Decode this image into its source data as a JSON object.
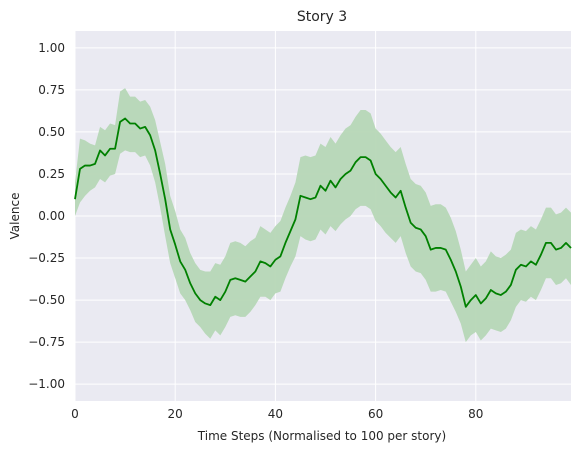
{
  "chart_data": {
    "type": "line",
    "title": "Story 3",
    "xlabel": "Time Steps (Normalised to 100 per story)",
    "ylabel": "Valence",
    "xlim": [
      0,
      99
    ],
    "ylim": [
      -1.1,
      1.1
    ],
    "xticks": [
      0,
      20,
      40,
      60,
      80
    ],
    "yticks": [
      -1.0,
      -0.75,
      -0.5,
      -0.25,
      0.0,
      0.25,
      0.5,
      0.75,
      1.0
    ],
    "ytick_labels": [
      "−1.00",
      "−0.75",
      "−0.50",
      "−0.25",
      "0.00",
      "0.25",
      "0.50",
      "0.75",
      "1.00"
    ],
    "grid": true,
    "style": "seaborn-darkgrid",
    "colors": {
      "line": "#008000",
      "band": "#b6d7b6",
      "background": "#eaeaf2",
      "grid": "#ffffff"
    },
    "series": [
      {
        "x": [
          0,
          1,
          2,
          3,
          4,
          5,
          6,
          7,
          8,
          9,
          10,
          11,
          12,
          13,
          14,
          15,
          16,
          17,
          18,
          19,
          20,
          21,
          22,
          23,
          24,
          25,
          26,
          27,
          28,
          29,
          30,
          31,
          32,
          33,
          34,
          35,
          36,
          37,
          38,
          39,
          40,
          41,
          42,
          43,
          44,
          45,
          46,
          47,
          48,
          49,
          50,
          51,
          52,
          53,
          54,
          55,
          56,
          57,
          58,
          59,
          60,
          61,
          62,
          63,
          64,
          65,
          66,
          67,
          68,
          69,
          70,
          71,
          72,
          73,
          74,
          75,
          76,
          77,
          78,
          79,
          80,
          81,
          82,
          83,
          84,
          85,
          86,
          87,
          88,
          89,
          90,
          91,
          92,
          93,
          94,
          95,
          96,
          97,
          98,
          99
        ],
        "y": [
          0.1,
          0.28,
          0.3,
          0.3,
          0.31,
          0.39,
          0.36,
          0.4,
          0.4,
          0.56,
          0.58,
          0.55,
          0.55,
          0.52,
          0.53,
          0.48,
          0.39,
          0.25,
          0.1,
          -0.08,
          -0.17,
          -0.27,
          -0.32,
          -0.4,
          -0.46,
          -0.5,
          -0.52,
          -0.53,
          -0.48,
          -0.5,
          -0.45,
          -0.38,
          -0.37,
          -0.38,
          -0.39,
          -0.36,
          -0.33,
          -0.27,
          -0.28,
          -0.3,
          -0.26,
          -0.24,
          -0.16,
          -0.09,
          -0.02,
          0.12,
          0.11,
          0.1,
          0.11,
          0.18,
          0.15,
          0.21,
          0.17,
          0.22,
          0.25,
          0.27,
          0.32,
          0.35,
          0.35,
          0.33,
          0.25,
          0.22,
          0.18,
          0.14,
          0.11,
          0.15,
          0.05,
          -0.04,
          -0.07,
          -0.08,
          -0.12,
          -0.2,
          -0.19,
          -0.19,
          -0.2,
          -0.26,
          -0.33,
          -0.42,
          -0.54,
          -0.5,
          -0.47,
          -0.52,
          -0.49,
          -0.44,
          -0.46,
          -0.47,
          -0.45,
          -0.41,
          -0.32,
          -0.29,
          -0.3,
          -0.27,
          -0.29,
          -0.23,
          -0.16,
          -0.16,
          -0.2,
          -0.19,
          -0.16,
          -0.19
        ],
        "lower": [
          0.0,
          0.08,
          0.12,
          0.15,
          0.17,
          0.22,
          0.2,
          0.24,
          0.25,
          0.37,
          0.39,
          0.38,
          0.38,
          0.35,
          0.36,
          0.3,
          0.2,
          0.05,
          -0.12,
          -0.28,
          -0.37,
          -0.46,
          -0.5,
          -0.56,
          -0.63,
          -0.66,
          -0.7,
          -0.73,
          -0.68,
          -0.71,
          -0.66,
          -0.6,
          -0.59,
          -0.6,
          -0.6,
          -0.57,
          -0.53,
          -0.48,
          -0.48,
          -0.5,
          -0.46,
          -0.45,
          -0.37,
          -0.3,
          -0.24,
          -0.12,
          -0.14,
          -0.15,
          -0.14,
          -0.08,
          -0.11,
          -0.06,
          -0.09,
          -0.05,
          -0.02,
          0.0,
          0.04,
          0.06,
          0.06,
          0.04,
          -0.03,
          -0.06,
          -0.1,
          -0.13,
          -0.16,
          -0.12,
          -0.22,
          -0.3,
          -0.33,
          -0.34,
          -0.38,
          -0.45,
          -0.45,
          -0.44,
          -0.45,
          -0.51,
          -0.57,
          -0.64,
          -0.75,
          -0.71,
          -0.69,
          -0.74,
          -0.71,
          -0.67,
          -0.68,
          -0.69,
          -0.67,
          -0.62,
          -0.54,
          -0.5,
          -0.51,
          -0.48,
          -0.5,
          -0.44,
          -0.37,
          -0.37,
          -0.41,
          -0.4,
          -0.37,
          -0.41
        ],
        "upper": [
          0.2,
          0.46,
          0.45,
          0.43,
          0.42,
          0.53,
          0.51,
          0.55,
          0.54,
          0.74,
          0.76,
          0.71,
          0.71,
          0.68,
          0.69,
          0.65,
          0.57,
          0.44,
          0.31,
          0.12,
          0.03,
          -0.08,
          -0.13,
          -0.22,
          -0.28,
          -0.32,
          -0.33,
          -0.33,
          -0.28,
          -0.29,
          -0.24,
          -0.16,
          -0.15,
          -0.16,
          -0.18,
          -0.15,
          -0.13,
          -0.06,
          -0.08,
          -0.1,
          -0.06,
          -0.03,
          0.05,
          0.12,
          0.2,
          0.35,
          0.36,
          0.35,
          0.36,
          0.43,
          0.41,
          0.47,
          0.43,
          0.48,
          0.52,
          0.54,
          0.59,
          0.63,
          0.63,
          0.61,
          0.52,
          0.49,
          0.45,
          0.41,
          0.38,
          0.41,
          0.31,
          0.22,
          0.19,
          0.18,
          0.14,
          0.06,
          0.07,
          0.07,
          0.05,
          -0.01,
          -0.09,
          -0.2,
          -0.33,
          -0.29,
          -0.25,
          -0.3,
          -0.27,
          -0.21,
          -0.24,
          -0.25,
          -0.23,
          -0.2,
          -0.1,
          -0.08,
          -0.09,
          -0.06,
          -0.08,
          -0.02,
          0.05,
          0.05,
          0.01,
          0.02,
          0.05,
          0.02
        ]
      }
    ]
  }
}
